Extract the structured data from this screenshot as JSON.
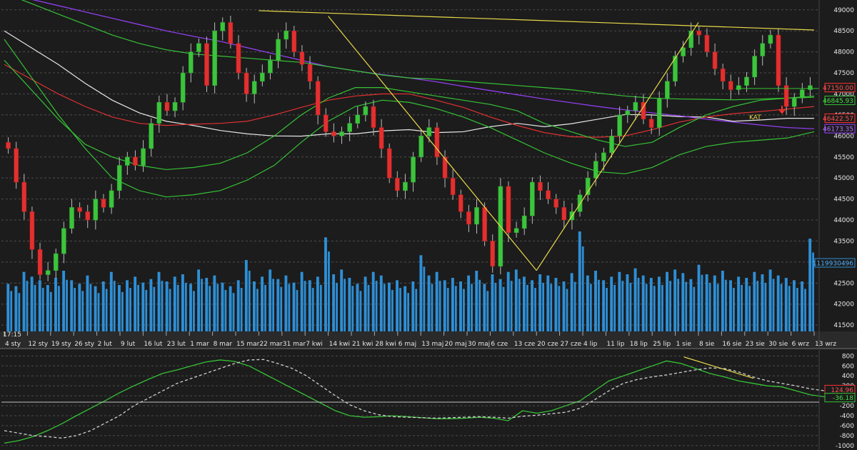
{
  "chart_data": [
    {
      "type": "candlestick",
      "title": "",
      "time_label": "17:15",
      "x_tick_labels": [
        "4 sty",
        "12 sty",
        "19 sty",
        "26 sty",
        "2 lut",
        "9 lut",
        "16 lut",
        "23 lut",
        "1 mar",
        "8 mar",
        "15 mar",
        "22 mar",
        "31 mar",
        "7 kwi",
        "14 kwi",
        "21 kwi",
        "28 kwi",
        "6 maj",
        "13 maj",
        "20 maj",
        "30 maj",
        "6 cze",
        "13 cze",
        "20 cze",
        "27 cze",
        "4 lip",
        "11 lip",
        "18 lip",
        "25 lip",
        "1 sie",
        "8 sie",
        "16 sie",
        "23 sie",
        "30 sie",
        "6 wrz",
        "13 wrz"
      ],
      "y_ticks": [
        41500,
        42000,
        42500,
        43000,
        43500,
        44000,
        44500,
        45000,
        45500,
        46000,
        46500,
        47000,
        47500,
        48000,
        48500,
        49000
      ],
      "ylim": [
        41350,
        49200
      ],
      "annotation": "KAT",
      "volume_label": "1119930496",
      "value_badges": [
        {
          "label": "47150.00",
          "value": 47150,
          "color": "#ff3030",
          "text_color": "#ff5050"
        },
        {
          "label": "46845.93",
          "value": 46845.93,
          "color": "#36c236",
          "text_color": "#3fe03f"
        },
        {
          "label": "46422.57",
          "value": 46422.57,
          "color": "#ff3030",
          "text_color": "#ff5050"
        },
        {
          "label": "46173.35",
          "value": 46173.35,
          "color": "#9a40ff",
          "text_color": "#b070ff"
        }
      ],
      "series": [
        {
          "name": "",
          "kind": "close",
          "color": "#ffffff",
          "values": [
            45700,
            44900,
            44200,
            43300,
            42700,
            42800,
            43200,
            43800,
            44300,
            44200,
            44000,
            44500,
            44300,
            44700,
            45300,
            45500,
            45300,
            45700,
            46300,
            46800,
            46600,
            46800,
            47500,
            48000,
            48200,
            47200,
            48500,
            48700,
            48200,
            47500,
            47000,
            47300,
            47500,
            47800,
            48300,
            48500,
            48000,
            47700,
            47300,
            46500,
            46100,
            46000,
            46100,
            46300,
            46500,
            46700,
            46200,
            45700,
            45000,
            44700,
            44900,
            45500,
            46000,
            46200,
            45500,
            45000,
            44600,
            44200,
            43900,
            44300,
            43500,
            42900,
            44800,
            43700,
            43800,
            44100,
            44900,
            44700,
            44500,
            44300,
            44000,
            44200,
            44600,
            45000,
            45400,
            45600,
            46000,
            46500,
            46600,
            46800,
            46400,
            46200,
            46900,
            47300,
            47900,
            48100,
            48500,
            48400,
            48000,
            47600,
            47300,
            47100,
            47200,
            47400,
            47900,
            48200,
            48400,
            47200,
            46700,
            46900,
            47100,
            47200
          ]
        },
        {
          "name": "",
          "kind": "sma",
          "color": "#e6e6e6",
          "values": [
            48500,
            48100,
            47700,
            47250,
            46850,
            46550,
            46350,
            46250,
            46130,
            46050,
            46000,
            45995,
            46050,
            46050,
            46120,
            46150,
            46080,
            46100,
            46220,
            46300,
            46220,
            46290,
            46400,
            46510,
            46500,
            46460,
            46450,
            46350,
            46380,
            46420,
            46420
          ]
        },
        {
          "name": "",
          "kind": "sma",
          "color": "#e03030",
          "values": [
            47700,
            47350,
            47000,
            46700,
            46450,
            46300,
            46250,
            46280,
            46300,
            46350,
            46500,
            46680,
            46850,
            46950,
            47000,
            47000,
            46850,
            46680,
            46450,
            46250,
            46080,
            45980,
            45970,
            46000,
            46150,
            46330,
            46450,
            46530,
            46580,
            46640,
            46700
          ]
        },
        {
          "name": "",
          "kind": "sma",
          "color": "#9a40ff",
          "values": [
            49400,
            49250,
            49100,
            48950,
            48800,
            48650,
            48500,
            48370,
            48250,
            48100,
            47950,
            47800,
            47650,
            47550,
            47460,
            47380,
            47290,
            47180,
            47080,
            46980,
            46880,
            46790,
            46700,
            46620,
            46550,
            46480,
            46400,
            46330,
            46260,
            46200,
            46170
          ]
        },
        {
          "name": "",
          "kind": "sma",
          "color": "#36c236",
          "values": [
            49400,
            49150,
            48900,
            48650,
            48400,
            48200,
            48050,
            47950,
            47900,
            47850,
            47800,
            47750,
            47650,
            47550,
            47450,
            47380,
            47350,
            47300,
            47250,
            47200,
            47150,
            47100,
            47020,
            46950,
            46900,
            46880,
            46870,
            46860,
            46880,
            46900,
            46920
          ]
        },
        {
          "name": "",
          "kind": "band_upper",
          "color": "#36c236",
          "values": [
            47800,
            47100,
            46400,
            45800,
            45500,
            45300,
            45200,
            45250,
            45350,
            45600,
            46000,
            46500,
            46900,
            47150,
            47150,
            47050,
            46950,
            46850,
            46750,
            46600,
            46300,
            46100,
            45900,
            45750,
            45850,
            46200,
            46500,
            46700,
            46850,
            46900,
            46950
          ]
        },
        {
          "name": "",
          "kind": "band_lower",
          "color": "#36c236",
          "values": [
            48300,
            47400,
            46500,
            45700,
            45000,
            44700,
            44550,
            44600,
            44700,
            44950,
            45300,
            45850,
            46350,
            46700,
            46850,
            46800,
            46650,
            46450,
            46200,
            45900,
            45600,
            45350,
            45150,
            45100,
            45250,
            45550,
            45750,
            45850,
            45900,
            45950,
            46100
          ]
        }
      ],
      "trendlines": [
        {
          "name": "",
          "from": {
            "x": "22 mar",
            "y": 48980
          },
          "to": {
            "x": "13 wrz",
            "y": 48520
          },
          "color": "#e8d84a"
        },
        {
          "name": "",
          "from": {
            "x": "14 kwi",
            "y": 48850
          },
          "to": {
            "x": "20 cze",
            "y": 42800
          },
          "color": "#e8d84a"
        },
        {
          "name": "",
          "from": {
            "x": "20 cze",
            "y": 42800
          },
          "to": {
            "x": "8 sie",
            "y": 48700
          },
          "color": "#e8d84a"
        }
      ],
      "volume": [
        400,
        380,
        500,
        460,
        430,
        390,
        450,
        510,
        430,
        400,
        470,
        380,
        420,
        500,
        390,
        430,
        460,
        410,
        440,
        500,
        420,
        460,
        480,
        400,
        520,
        450,
        470,
        410,
        380,
        430,
        600,
        420,
        460,
        520,
        440,
        470,
        410,
        500,
        430,
        460,
        790,
        480,
        520,
        450,
        400,
        460,
        500,
        470,
        410,
        430,
        380,
        420,
        640,
        470,
        500,
        430,
        450,
        420,
        470,
        510,
        400,
        480,
        440,
        500,
        520,
        460,
        430,
        480,
        470,
        450,
        420,
        490,
        840,
        470,
        510,
        430,
        460,
        500,
        480,
        530,
        470,
        450,
        460,
        500,
        520,
        490,
        440,
        560,
        480,
        470,
        510,
        430,
        460,
        450,
        500,
        480,
        520,
        470,
        450,
        430,
        420,
        780
      ]
    },
    {
      "type": "line",
      "title": "",
      "y_ticks": [
        800,
        600,
        400,
        200,
        0,
        -200,
        -400,
        -600,
        -800,
        -1000
      ],
      "ylim": [
        -1060,
        920
      ],
      "value_badges": [
        {
          "label": "124.96",
          "value": 124.96,
          "color": "#ff3030",
          "text_color": "#ff5050"
        },
        {
          "label": "-36.18",
          "value": -36.18,
          "color": "#36c236",
          "text_color": "#3fe03f"
        }
      ],
      "series": [
        {
          "name": "",
          "kind": "oscillator",
          "color": "#36c236",
          "values": [
            -950,
            -900,
            -820,
            -700,
            -560,
            -400,
            -250,
            -100,
            60,
            200,
            330,
            450,
            520,
            600,
            680,
            720,
            690,
            600,
            450,
            300,
            150,
            0,
            -150,
            -300,
            -400,
            -430,
            -420,
            -400,
            -420,
            -440,
            -460,
            -460,
            -450,
            -430,
            -450,
            -500,
            -300,
            -350,
            -300,
            -200,
            -100,
            100,
            300,
            400,
            500,
            600,
            700,
            650,
            550,
            450,
            380,
            300,
            250,
            200,
            180,
            100,
            20,
            -20
          ]
        },
        {
          "name": "",
          "kind": "signal",
          "color": "#d0d0d0",
          "values": [
            -700,
            -750,
            -800,
            -820,
            -850,
            -800,
            -700,
            -550,
            -400,
            -200,
            -50,
            100,
            250,
            350,
            450,
            550,
            650,
            720,
            730,
            650,
            550,
            400,
            200,
            0,
            -180,
            -300,
            -380,
            -420,
            -430,
            -440,
            -450,
            -440,
            -430,
            -420,
            -430,
            -450,
            -410,
            -390,
            -360,
            -330,
            -250,
            -80,
            100,
            250,
            330,
            380,
            420,
            470,
            520,
            560,
            550,
            480,
            380,
            300,
            250,
            200,
            140,
            100
          ]
        }
      ],
      "trendlines": [
        {
          "name": "",
          "from": {
            "x": 0.835,
            "y": 780
          },
          "to": {
            "x": 0.92,
            "y": 350
          },
          "color": "#e8d84a"
        }
      ]
    }
  ]
}
